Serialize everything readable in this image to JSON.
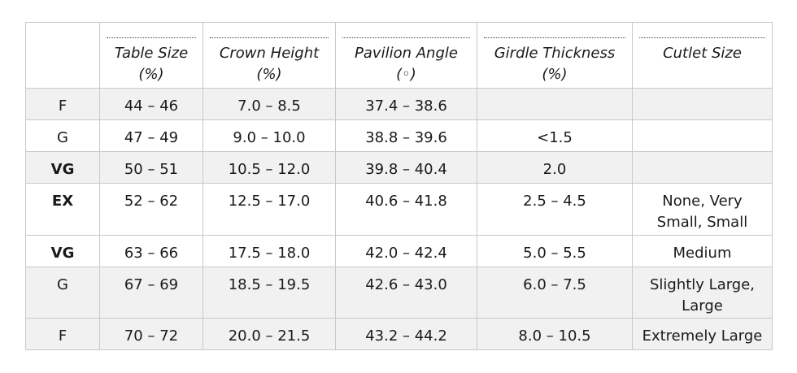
{
  "header": {
    "columns": [
      {
        "line1": "",
        "line2": ""
      },
      {
        "line1": "Table Size",
        "line2": "(%)"
      },
      {
        "line1": "Crown Height",
        "line2": "(%)"
      },
      {
        "line1": "Pavilion Angle",
        "line2": "(◦)"
      },
      {
        "line1": "Girdle Thickness",
        "line2": "(%)"
      },
      {
        "line1": "Cutlet Size",
        "line2": ""
      }
    ]
  },
  "rows": [
    {
      "grade": "F",
      "bold": false,
      "shaded": true,
      "table": "44 – 46",
      "crown": "7.0 – 8.5",
      "pavilion": "37.4 – 38.6",
      "girdle": "",
      "culet": ""
    },
    {
      "grade": "G",
      "bold": false,
      "shaded": false,
      "table": "47 – 49",
      "crown": "9.0 – 10.0",
      "pavilion": "38.8 – 39.6",
      "girdle": "<1.5",
      "culet": ""
    },
    {
      "grade": "VG",
      "bold": true,
      "shaded": true,
      "table": "50 – 51",
      "crown": "10.5 – 12.0",
      "pavilion": "39.8 – 40.4",
      "girdle": "2.0",
      "culet": ""
    },
    {
      "grade": "EX",
      "bold": true,
      "shaded": false,
      "table": "52 – 62",
      "crown": "12.5 – 17.0",
      "pavilion": "40.6 – 41.8",
      "girdle": "2.5 – 4.5",
      "culet": "None, Very\nSmall, Small"
    },
    {
      "grade": "VG",
      "bold": true,
      "shaded": false,
      "table": "63 – 66",
      "crown": "17.5 – 18.0",
      "pavilion": "42.0 – 42.4",
      "girdle": "5.0 – 5.5",
      "culet": "Medium"
    },
    {
      "grade": "G",
      "bold": false,
      "shaded": true,
      "table": "67 – 69",
      "crown": "18.5 – 19.5",
      "pavilion": "42.6 – 43.0",
      "girdle": "6.0 – 7.5",
      "culet": "Slightly Large,\nLarge"
    },
    {
      "grade": "F",
      "bold": false,
      "shaded": true,
      "table": "70 – 72",
      "crown": "20.0 – 21.5",
      "pavilion": "43.2 – 44.2",
      "girdle": "8.0 – 10.5",
      "culet": "Extremely Large"
    }
  ]
}
